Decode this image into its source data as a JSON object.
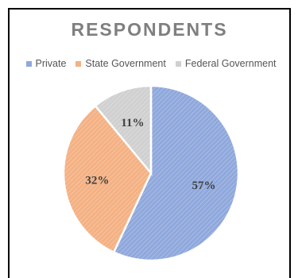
{
  "chart_data": {
    "type": "pie",
    "title": "RESPONDENTS",
    "legend_position": "top",
    "categories": [
      "Private",
      "State Government",
      "Federal Government"
    ],
    "values": [
      57,
      32,
      11
    ],
    "labels": [
      "57%",
      "32%",
      "11%"
    ],
    "colors": [
      "#8fa8dc",
      "#f4b183",
      "#d0d0d0"
    ],
    "hatch": true
  }
}
